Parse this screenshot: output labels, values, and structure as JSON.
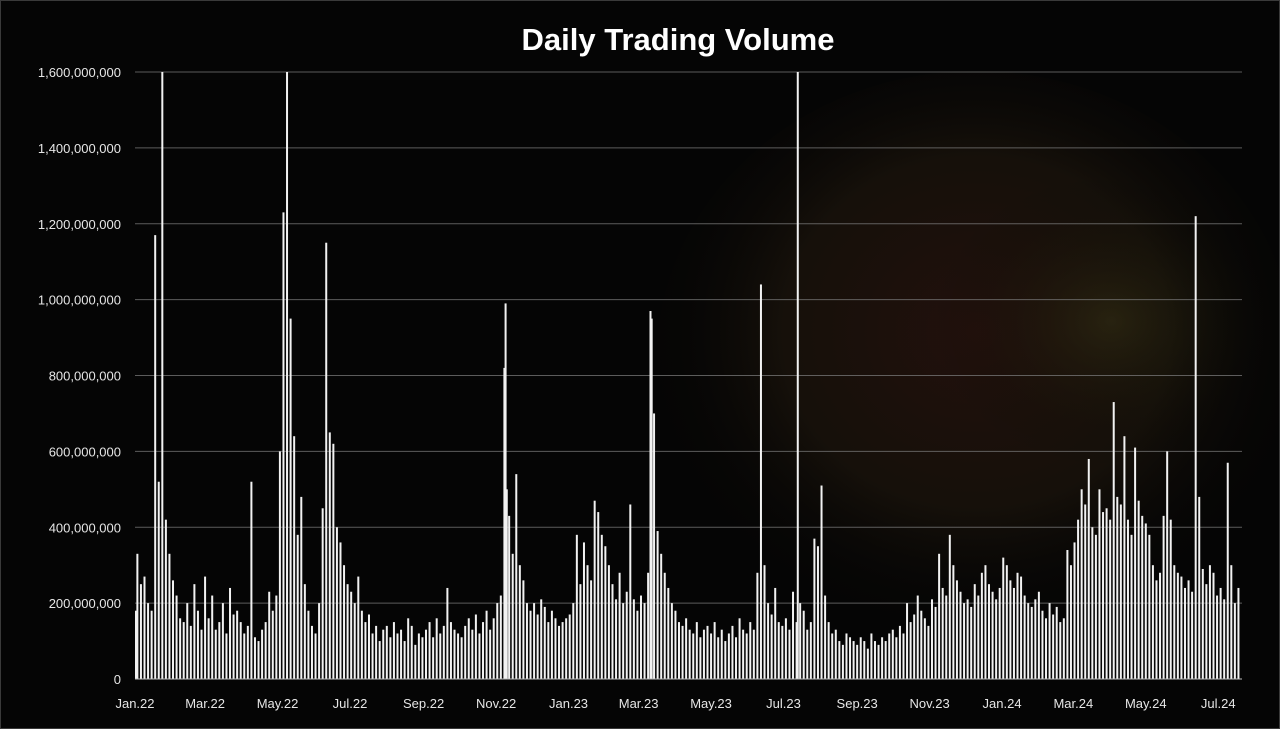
{
  "chart_data": {
    "type": "bar",
    "title": "Daily Trading Volume",
    "xlabel": "",
    "ylabel": "",
    "ylim": [
      0,
      1600000000
    ],
    "yticks": [
      {
        "value": 0,
        "label": "0"
      },
      {
        "value": 200000000,
        "label": "200,000,000"
      },
      {
        "value": 400000000,
        "label": "400,000,000"
      },
      {
        "value": 600000000,
        "label": "600,000,000"
      },
      {
        "value": 800000000,
        "label": "800,000,000"
      },
      {
        "value": 1000000000,
        "label": "1,000,000,000"
      },
      {
        "value": 1200000000,
        "label": "1,200,000,000"
      },
      {
        "value": 1400000000,
        "label": "1,400,000,000"
      },
      {
        "value": 1600000000,
        "label": "1,600,000,000"
      }
    ],
    "xticks": [
      {
        "date": "2022-01-01",
        "label": "Jan.22"
      },
      {
        "date": "2022-03-01",
        "label": "Mar.22"
      },
      {
        "date": "2022-05-01",
        "label": "May.22"
      },
      {
        "date": "2022-07-01",
        "label": "Jul.22"
      },
      {
        "date": "2022-09-01",
        "label": "Sep.22"
      },
      {
        "date": "2022-11-01",
        "label": "Nov.22"
      },
      {
        "date": "2023-01-01",
        "label": "Jan.23"
      },
      {
        "date": "2023-03-01",
        "label": "Mar.23"
      },
      {
        "date": "2023-05-01",
        "label": "May.23"
      },
      {
        "date": "2023-07-01",
        "label": "Jul.23"
      },
      {
        "date": "2023-09-01",
        "label": "Sep.23"
      },
      {
        "date": "2023-11-01",
        "label": "Nov.23"
      },
      {
        "date": "2024-01-01",
        "label": "Jan.24"
      },
      {
        "date": "2024-03-01",
        "label": "Mar.24"
      },
      {
        "date": "2024-05-01",
        "label": "May.24"
      },
      {
        "date": "2024-07-01",
        "label": "Jul.24"
      }
    ],
    "grid": true,
    "legend": "none",
    "bar_color": "#f2f2f2",
    "x": [
      "2022-01-01",
      "2022-01-03",
      "2022-01-06",
      "2022-01-09",
      "2022-01-12",
      "2022-01-15",
      "2022-01-18",
      "2022-01-21",
      "2022-01-24",
      "2022-01-27",
      "2022-01-30",
      "2022-02-02",
      "2022-02-05",
      "2022-02-08",
      "2022-02-11",
      "2022-02-14",
      "2022-02-17",
      "2022-02-20",
      "2022-02-23",
      "2022-02-26",
      "2022-03-01",
      "2022-03-04",
      "2022-03-07",
      "2022-03-10",
      "2022-03-13",
      "2022-03-16",
      "2022-03-19",
      "2022-03-22",
      "2022-03-25",
      "2022-03-28",
      "2022-03-31",
      "2022-04-03",
      "2022-04-06",
      "2022-04-09",
      "2022-04-12",
      "2022-04-15",
      "2022-04-18",
      "2022-04-21",
      "2022-04-24",
      "2022-04-27",
      "2022-04-30",
      "2022-05-03",
      "2022-05-06",
      "2022-05-09",
      "2022-05-12",
      "2022-05-15",
      "2022-05-18",
      "2022-05-21",
      "2022-05-24",
      "2022-05-27",
      "2022-05-30",
      "2022-06-02",
      "2022-06-05",
      "2022-06-08",
      "2022-06-11",
      "2022-06-14",
      "2022-06-17",
      "2022-06-20",
      "2022-06-23",
      "2022-06-26",
      "2022-06-29",
      "2022-07-02",
      "2022-07-05",
      "2022-07-08",
      "2022-07-11",
      "2022-07-14",
      "2022-07-17",
      "2022-07-20",
      "2022-07-23",
      "2022-07-26",
      "2022-07-29",
      "2022-08-01",
      "2022-08-04",
      "2022-08-07",
      "2022-08-10",
      "2022-08-13",
      "2022-08-16",
      "2022-08-19",
      "2022-08-22",
      "2022-08-25",
      "2022-08-28",
      "2022-08-31",
      "2022-09-03",
      "2022-09-06",
      "2022-09-09",
      "2022-09-12",
      "2022-09-15",
      "2022-09-18",
      "2022-09-21",
      "2022-09-24",
      "2022-09-27",
      "2022-09-30",
      "2022-10-03",
      "2022-10-06",
      "2022-10-09",
      "2022-10-12",
      "2022-10-15",
      "2022-10-18",
      "2022-10-21",
      "2022-10-24",
      "2022-10-27",
      "2022-10-30",
      "2022-11-02",
      "2022-11-05",
      "2022-11-08",
      "2022-11-09",
      "2022-11-10",
      "2022-11-12",
      "2022-11-15",
      "2022-11-18",
      "2022-11-21",
      "2022-11-24",
      "2022-11-27",
      "2022-11-30",
      "2022-12-03",
      "2022-12-06",
      "2022-12-09",
      "2022-12-12",
      "2022-12-15",
      "2022-12-18",
      "2022-12-21",
      "2022-12-24",
      "2022-12-27",
      "2022-12-30",
      "2023-01-02",
      "2023-01-05",
      "2023-01-08",
      "2023-01-11",
      "2023-01-14",
      "2023-01-17",
      "2023-01-20",
      "2023-01-23",
      "2023-01-26",
      "2023-01-29",
      "2023-02-01",
      "2023-02-04",
      "2023-02-07",
      "2023-02-10",
      "2023-02-13",
      "2023-02-16",
      "2023-02-19",
      "2023-02-22",
      "2023-02-25",
      "2023-02-28",
      "2023-03-03",
      "2023-03-06",
      "2023-03-09",
      "2023-03-11",
      "2023-03-12",
      "2023-03-14",
      "2023-03-17",
      "2023-03-20",
      "2023-03-23",
      "2023-03-26",
      "2023-03-29",
      "2023-04-01",
      "2023-04-04",
      "2023-04-07",
      "2023-04-10",
      "2023-04-13",
      "2023-04-16",
      "2023-04-19",
      "2023-04-22",
      "2023-04-25",
      "2023-04-28",
      "2023-05-01",
      "2023-05-04",
      "2023-05-07",
      "2023-05-10",
      "2023-05-13",
      "2023-05-16",
      "2023-05-19",
      "2023-05-22",
      "2023-05-25",
      "2023-05-28",
      "2023-05-31",
      "2023-06-03",
      "2023-06-06",
      "2023-06-09",
      "2023-06-12",
      "2023-06-15",
      "2023-06-18",
      "2023-06-21",
      "2023-06-24",
      "2023-06-27",
      "2023-06-30",
      "2023-07-03",
      "2023-07-06",
      "2023-07-09",
      "2023-07-12",
      "2023-07-13",
      "2023-07-15",
      "2023-07-18",
      "2023-07-21",
      "2023-07-24",
      "2023-07-27",
      "2023-07-30",
      "2023-08-02",
      "2023-08-05",
      "2023-08-08",
      "2023-08-11",
      "2023-08-14",
      "2023-08-17",
      "2023-08-20",
      "2023-08-23",
      "2023-08-26",
      "2023-08-29",
      "2023-09-01",
      "2023-09-04",
      "2023-09-07",
      "2023-09-10",
      "2023-09-13",
      "2023-09-16",
      "2023-09-19",
      "2023-09-22",
      "2023-09-25",
      "2023-09-28",
      "2023-10-01",
      "2023-10-04",
      "2023-10-07",
      "2023-10-10",
      "2023-10-13",
      "2023-10-16",
      "2023-10-19",
      "2023-10-22",
      "2023-10-25",
      "2023-10-28",
      "2023-10-31",
      "2023-11-03",
      "2023-11-06",
      "2023-11-09",
      "2023-11-12",
      "2023-11-15",
      "2023-11-18",
      "2023-11-21",
      "2023-11-24",
      "2023-11-27",
      "2023-11-30",
      "2023-12-03",
      "2023-12-06",
      "2023-12-09",
      "2023-12-12",
      "2023-12-15",
      "2023-12-18",
      "2023-12-21",
      "2023-12-24",
      "2023-12-27",
      "2023-12-30",
      "2024-01-02",
      "2024-01-05",
      "2024-01-08",
      "2024-01-11",
      "2024-01-14",
      "2024-01-17",
      "2024-01-20",
      "2024-01-23",
      "2024-01-26",
      "2024-01-29",
      "2024-02-01",
      "2024-02-04",
      "2024-02-07",
      "2024-02-10",
      "2024-02-13",
      "2024-02-16",
      "2024-02-19",
      "2024-02-22",
      "2024-02-25",
      "2024-02-28",
      "2024-03-02",
      "2024-03-05",
      "2024-03-08",
      "2024-03-11",
      "2024-03-14",
      "2024-03-17",
      "2024-03-20",
      "2024-03-23",
      "2024-03-26",
      "2024-03-29",
      "2024-04-01",
      "2024-04-04",
      "2024-04-07",
      "2024-04-10",
      "2024-04-13",
      "2024-04-16",
      "2024-04-19",
      "2024-04-22",
      "2024-04-25",
      "2024-04-28",
      "2024-05-01",
      "2024-05-04",
      "2024-05-07",
      "2024-05-10",
      "2024-05-13",
      "2024-05-16",
      "2024-05-19",
      "2024-05-22",
      "2024-05-25",
      "2024-05-28",
      "2024-05-31",
      "2024-06-03",
      "2024-06-06",
      "2024-06-09",
      "2024-06-12",
      "2024-06-15",
      "2024-06-18",
      "2024-06-21",
      "2024-06-24",
      "2024-06-27",
      "2024-06-30",
      "2024-07-03",
      "2024-07-06",
      "2024-07-09",
      "2024-07-12",
      "2024-07-15",
      "2024-07-18"
    ],
    "values": [
      180000000,
      330000000,
      250000000,
      270000000,
      200000000,
      180000000,
      1170000000,
      520000000,
      1600000000,
      420000000,
      330000000,
      260000000,
      220000000,
      160000000,
      150000000,
      200000000,
      140000000,
      250000000,
      180000000,
      130000000,
      270000000,
      160000000,
      220000000,
      130000000,
      150000000,
      200000000,
      120000000,
      240000000,
      170000000,
      180000000,
      150000000,
      120000000,
      140000000,
      520000000,
      110000000,
      100000000,
      130000000,
      150000000,
      230000000,
      180000000,
      220000000,
      600000000,
      1230000000,
      1600000000,
      950000000,
      640000000,
      380000000,
      480000000,
      250000000,
      180000000,
      140000000,
      120000000,
      200000000,
      450000000,
      1150000000,
      650000000,
      620000000,
      400000000,
      360000000,
      300000000,
      250000000,
      230000000,
      200000000,
      270000000,
      180000000,
      150000000,
      170000000,
      120000000,
      140000000,
      100000000,
      130000000,
      140000000,
      110000000,
      150000000,
      120000000,
      130000000,
      100000000,
      160000000,
      140000000,
      90000000,
      120000000,
      110000000,
      130000000,
      150000000,
      110000000,
      160000000,
      120000000,
      140000000,
      240000000,
      150000000,
      130000000,
      120000000,
      110000000,
      140000000,
      160000000,
      130000000,
      170000000,
      120000000,
      150000000,
      180000000,
      130000000,
      160000000,
      200000000,
      220000000,
      820000000,
      990000000,
      500000000,
      430000000,
      330000000,
      540000000,
      300000000,
      260000000,
      200000000,
      180000000,
      200000000,
      170000000,
      210000000,
      190000000,
      150000000,
      180000000,
      160000000,
      140000000,
      150000000,
      160000000,
      170000000,
      200000000,
      380000000,
      250000000,
      360000000,
      300000000,
      260000000,
      470000000,
      440000000,
      380000000,
      350000000,
      300000000,
      250000000,
      210000000,
      280000000,
      200000000,
      230000000,
      460000000,
      210000000,
      180000000,
      220000000,
      200000000,
      280000000,
      970000000,
      950000000,
      700000000,
      390000000,
      330000000,
      280000000,
      240000000,
      200000000,
      180000000,
      150000000,
      140000000,
      160000000,
      130000000,
      120000000,
      150000000,
      110000000,
      130000000,
      140000000,
      120000000,
      150000000,
      110000000,
      130000000,
      100000000,
      120000000,
      140000000,
      110000000,
      160000000,
      130000000,
      120000000,
      150000000,
      130000000,
      280000000,
      1040000000,
      300000000,
      200000000,
      170000000,
      240000000,
      150000000,
      140000000,
      160000000,
      130000000,
      230000000,
      150000000,
      1600000000,
      200000000,
      180000000,
      130000000,
      150000000,
      370000000,
      350000000,
      510000000,
      220000000,
      150000000,
      120000000,
      130000000,
      100000000,
      90000000,
      120000000,
      110000000,
      100000000,
      90000000,
      110000000,
      100000000,
      80000000,
      120000000,
      100000000,
      90000000,
      110000000,
      100000000,
      120000000,
      130000000,
      110000000,
      140000000,
      120000000,
      200000000,
      150000000,
      170000000,
      220000000,
      180000000,
      160000000,
      140000000,
      210000000,
      190000000,
      330000000,
      240000000,
      220000000,
      380000000,
      300000000,
      260000000,
      230000000,
      200000000,
      210000000,
      190000000,
      250000000,
      220000000,
      280000000,
      300000000,
      250000000,
      230000000,
      210000000,
      240000000,
      320000000,
      300000000,
      260000000,
      240000000,
      280000000,
      270000000,
      220000000,
      200000000,
      190000000,
      210000000,
      230000000,
      180000000,
      160000000,
      200000000,
      170000000,
      190000000,
      150000000,
      160000000,
      340000000,
      300000000,
      360000000,
      420000000,
      500000000,
      460000000,
      580000000,
      400000000,
      380000000,
      500000000,
      440000000,
      450000000,
      420000000,
      730000000,
      480000000,
      460000000,
      640000000,
      420000000,
      380000000,
      610000000,
      470000000,
      430000000,
      410000000,
      380000000,
      300000000,
      260000000,
      280000000,
      430000000,
      600000000,
      420000000,
      300000000,
      280000000,
      270000000,
      240000000,
      260000000,
      230000000,
      1220000000,
      480000000,
      290000000,
      250000000,
      300000000,
      280000000,
      220000000,
      240000000,
      210000000,
      570000000,
      300000000,
      200000000,
      240000000
    ]
  }
}
